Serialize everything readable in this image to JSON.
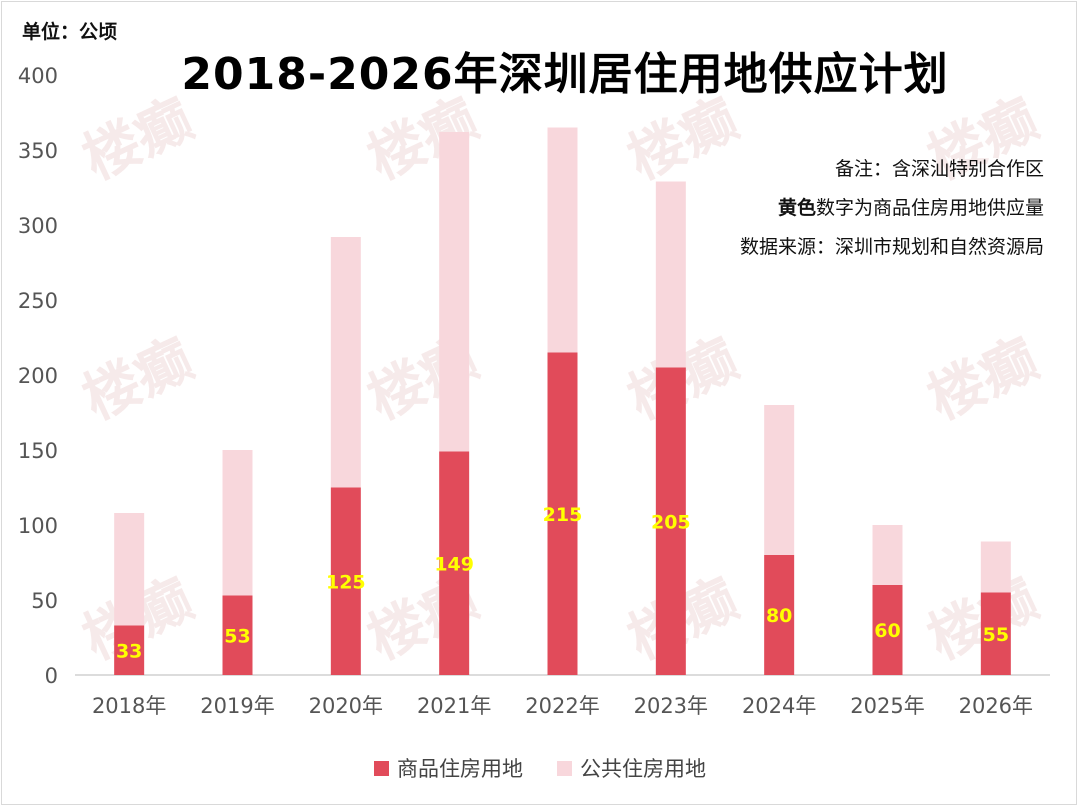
{
  "unit_label": "单位：公顷",
  "legend": [
    {
      "name": "商品住房用地",
      "color": "#e14b5a"
    },
    {
      "name": "公共住房用地",
      "color": "#f8d7dc"
    }
  ],
  "notes": {
    "line1": "备注：含深汕特别合作区",
    "line2_bold": "黄色",
    "line2_rest": "数字为商品住房用地供应量",
    "line3": "数据来源：深圳市规划和自然资源局"
  },
  "watermark": "楼癫",
  "chart_data": {
    "type": "bar",
    "stacked": true,
    "title": "2018-2026年深圳居住用地供应计划",
    "categories": [
      "2018年",
      "2019年",
      "2020年",
      "2021年",
      "2022年",
      "2023年",
      "2024年",
      "2025年",
      "2026年"
    ],
    "series": [
      {
        "name": "商品住房用地",
        "color": "#e14b5a",
        "values": [
          33,
          53,
          125,
          149,
          215,
          205,
          80,
          60,
          55
        ]
      },
      {
        "name": "公共住房用地",
        "color": "#f8d7dc",
        "values": [
          75,
          97,
          167,
          213,
          150,
          124,
          100,
          40,
          34
        ]
      }
    ],
    "data_labels": [
      "33",
      "53",
      "125",
      "149",
      "215",
      "205",
      "80",
      "60",
      "55"
    ],
    "ylim": [
      0,
      400
    ],
    "yticks": [
      0,
      50,
      100,
      150,
      200,
      250,
      300,
      350,
      400
    ],
    "grid": false,
    "legend_position": "bottom"
  }
}
